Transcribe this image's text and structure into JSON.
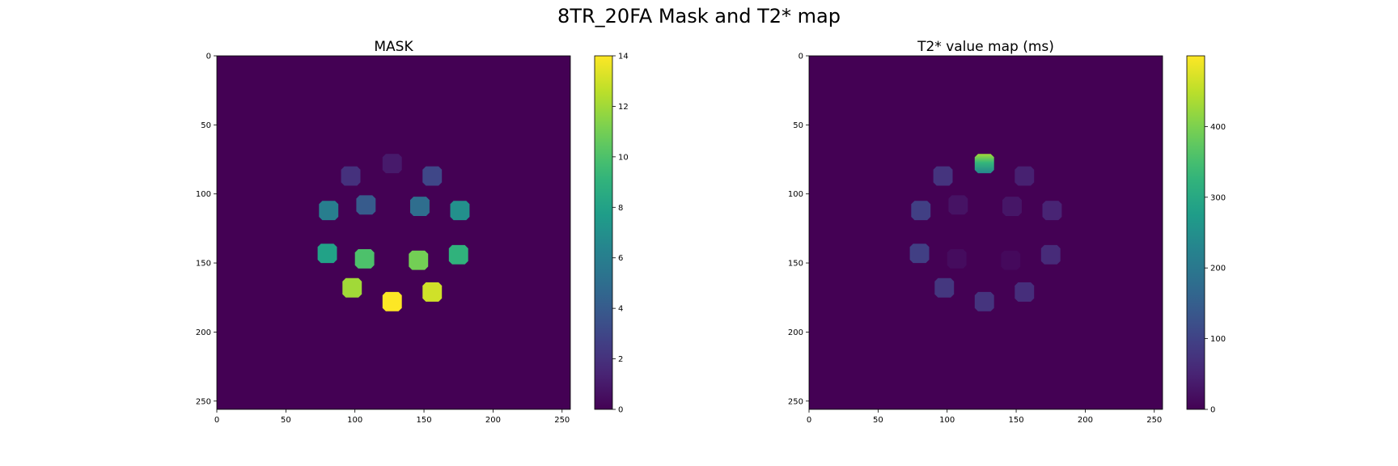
{
  "figure": {
    "title": "8TR_20FA Mask and T2* map"
  },
  "colors": {
    "background": "#ffffff",
    "viridis_stops": [
      "#440154",
      "#482878",
      "#3e4989",
      "#31688e",
      "#26828e",
      "#1f9e89",
      "#35b779",
      "#6ece58",
      "#b5de2b",
      "#fde725"
    ]
  },
  "chart_data": [
    {
      "type": "heatmap",
      "title": "MASK",
      "xlim": [
        0,
        256
      ],
      "ylim": [
        256,
        0
      ],
      "xticks": [
        0,
        50,
        100,
        150,
        200,
        250
      ],
      "yticks": [
        0,
        50,
        100,
        150,
        200,
        250
      ],
      "colorbar": {
        "range": [
          0,
          14
        ],
        "ticks": [
          0,
          2,
          4,
          6,
          8,
          10,
          12,
          14
        ]
      },
      "background_value": 0,
      "regions": [
        {
          "x": 127,
          "y": 78,
          "value": 1
        },
        {
          "x": 97,
          "y": 87,
          "value": 2
        },
        {
          "x": 156,
          "y": 87,
          "value": 3
        },
        {
          "x": 108,
          "y": 108,
          "value": 4
        },
        {
          "x": 147,
          "y": 109,
          "value": 5
        },
        {
          "x": 81,
          "y": 112,
          "value": 6
        },
        {
          "x": 176,
          "y": 112,
          "value": 7
        },
        {
          "x": 80,
          "y": 143,
          "value": 8
        },
        {
          "x": 175,
          "y": 144,
          "value": 9
        },
        {
          "x": 107,
          "y": 147,
          "value": 10
        },
        {
          "x": 146,
          "y": 148,
          "value": 11
        },
        {
          "x": 98,
          "y": 168,
          "value": 12
        },
        {
          "x": 156,
          "y": 171,
          "value": 13
        },
        {
          "x": 127,
          "y": 178,
          "value": 14
        }
      ]
    },
    {
      "type": "heatmap",
      "title": "T2* value map (ms)",
      "xlim": [
        0,
        256
      ],
      "ylim": [
        256,
        0
      ],
      "xticks": [
        0,
        50,
        100,
        150,
        200,
        250
      ],
      "yticks": [
        0,
        50,
        100,
        150,
        200,
        250
      ],
      "colorbar": {
        "range": [
          0,
          500
        ],
        "ticks": [
          0,
          100,
          200,
          300,
          400
        ]
      },
      "background_value": 0,
      "regions": [
        {
          "x": 127,
          "y": 78,
          "value": 230,
          "peak": 430
        },
        {
          "x": 97,
          "y": 87,
          "value": 75
        },
        {
          "x": 156,
          "y": 87,
          "value": 45
        },
        {
          "x": 108,
          "y": 108,
          "value": 25
        },
        {
          "x": 147,
          "y": 109,
          "value": 30
        },
        {
          "x": 81,
          "y": 112,
          "value": 95
        },
        {
          "x": 176,
          "y": 112,
          "value": 50
        },
        {
          "x": 80,
          "y": 143,
          "value": 95
        },
        {
          "x": 175,
          "y": 144,
          "value": 60
        },
        {
          "x": 107,
          "y": 147,
          "value": 15
        },
        {
          "x": 146,
          "y": 148,
          "value": 12
        },
        {
          "x": 98,
          "y": 168,
          "value": 80
        },
        {
          "x": 156,
          "y": 171,
          "value": 65
        },
        {
          "x": 127,
          "y": 178,
          "value": 75
        }
      ]
    }
  ]
}
